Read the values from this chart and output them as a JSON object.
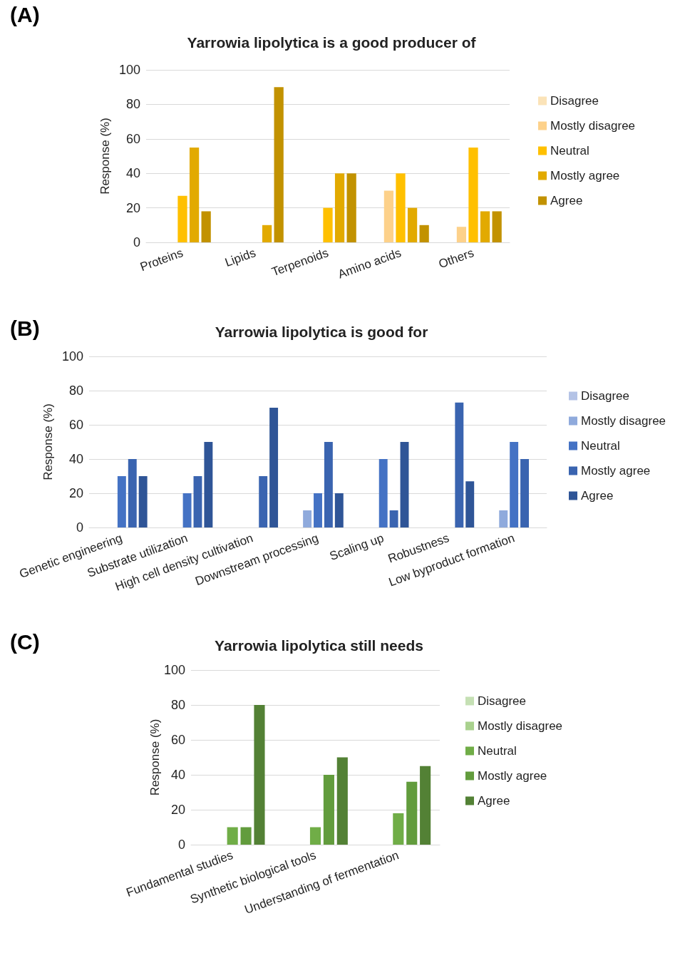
{
  "chart_data": [
    {
      "type": "bar",
      "title": "Yarrowia lipolytica is a good producer of",
      "annotations": [
        "(A)"
      ],
      "ylabel": "Response (%)",
      "categories": [
        "Proteins",
        "Lipids",
        "Terpenoids",
        "Amino acids",
        "Others"
      ],
      "series": [
        {
          "name": "Disagree",
          "color": "#fbe3b8",
          "values": [
            0,
            0,
            0,
            0,
            0
          ]
        },
        {
          "name": "Mostly disagree",
          "color": "#fdd18a",
          "values": [
            0,
            0,
            0,
            30,
            9
          ]
        },
        {
          "name": "Neutral",
          "color": "#ffc000",
          "values": [
            27,
            0,
            20,
            40,
            55
          ]
        },
        {
          "name": "Mostly agree",
          "color": "#e2aa00",
          "values": [
            55,
            10,
            40,
            20,
            18
          ]
        },
        {
          "name": "Agree",
          "color": "#c29200",
          "values": [
            18,
            90,
            40,
            10,
            18
          ]
        }
      ],
      "ylim": [
        0,
        100
      ],
      "yticks": [
        0,
        20,
        40,
        60,
        80,
        100
      ],
      "grid": "y",
      "legend": "right"
    },
    {
      "type": "bar",
      "title": "Yarrowia lipolytica is good for",
      "annotations": [
        "(B)"
      ],
      "ylabel": "Response (%)",
      "categories": [
        "Genetic engineering",
        "Substrate utilization",
        "High cell density cultivation",
        "Downstream processing",
        "Scaling up",
        "Robustness",
        "Low byproduct formation"
      ],
      "series": [
        {
          "name": "Disagree",
          "color": "#b4c3e6",
          "values": [
            0,
            0,
            0,
            0,
            0,
            0,
            0
          ]
        },
        {
          "name": "Mostly disagree",
          "color": "#8faadc",
          "values": [
            0,
            0,
            0,
            10,
            0,
            0,
            10
          ]
        },
        {
          "name": "Neutral",
          "color": "#4472c4",
          "values": [
            30,
            20,
            0,
            20,
            40,
            0,
            50
          ]
        },
        {
          "name": "Mostly agree",
          "color": "#3a64b0",
          "values": [
            40,
            30,
            30,
            50,
            10,
            73,
            40
          ]
        },
        {
          "name": "Agree",
          "color": "#2f5597",
          "values": [
            30,
            50,
            70,
            20,
            50,
            27,
            0
          ]
        }
      ],
      "ylim": [
        0,
        100
      ],
      "yticks": [
        0,
        20,
        40,
        60,
        80,
        100
      ],
      "grid": "y",
      "legend": "right"
    },
    {
      "type": "bar",
      "title": "Yarrowia lipolytica still needs",
      "annotations": [
        "(C)"
      ],
      "ylabel": "Response (%)",
      "categories": [
        "Fundamental studies",
        "Synthetic biological tools",
        "Understanding of fermentation"
      ],
      "series": [
        {
          "name": "Disagree",
          "color": "#c5e0b4",
          "values": [
            0,
            0,
            0
          ]
        },
        {
          "name": "Mostly disagree",
          "color": "#a9d18e",
          "values": [
            0,
            0,
            0
          ]
        },
        {
          "name": "Neutral",
          "color": "#70ad47",
          "values": [
            10,
            10,
            18
          ]
        },
        {
          "name": "Mostly agree",
          "color": "#629c3d",
          "values": [
            10,
            40,
            36
          ]
        },
        {
          "name": "Agree",
          "color": "#538135",
          "values": [
            80,
            50,
            45
          ]
        }
      ],
      "ylim": [
        0,
        100
      ],
      "yticks": [
        0,
        20,
        40,
        60,
        80,
        100
      ],
      "grid": "y",
      "legend": "right"
    }
  ]
}
